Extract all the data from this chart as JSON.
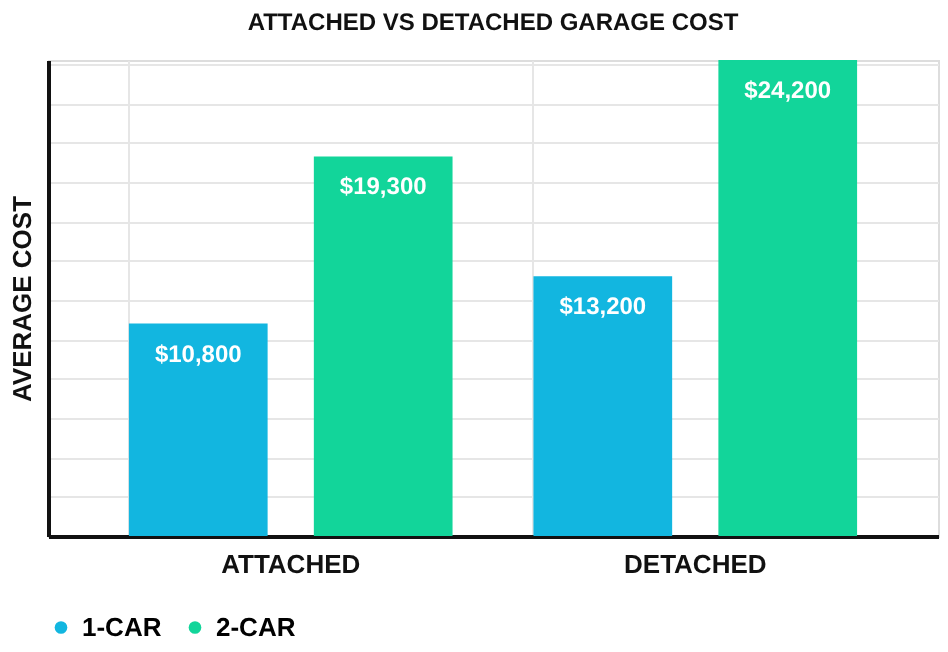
{
  "chart_data": {
    "type": "bar",
    "title": "ATTACHED VS DETACHED GARAGE COST",
    "ylabel": "AVERAGE COST",
    "categories": [
      "ATTACHED",
      "DETACHED"
    ],
    "series": [
      {
        "name": "1-CAR",
        "color": "#12b6e0",
        "values": [
          10800,
          13200
        ],
        "value_labels": [
          "$10,800",
          "$13,200"
        ]
      },
      {
        "name": "2-CAR",
        "color": "#12d59a",
        "values": [
          19300,
          24200
        ],
        "value_labels": [
          "$19,300",
          "$24,200"
        ]
      }
    ],
    "grid": true,
    "legend": "bottom"
  }
}
